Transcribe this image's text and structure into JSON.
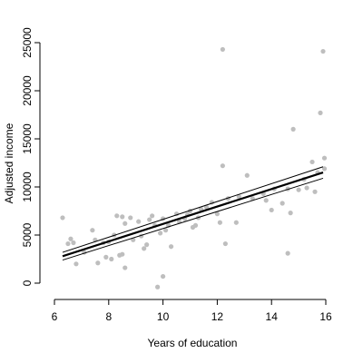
{
  "chart_data": {
    "type": "scatter",
    "xlabel": "Years of education",
    "ylabel": "Adjusted income",
    "xlim": [
      6,
      16
    ],
    "ylim": [
      -500,
      25000
    ],
    "xticks": [
      6,
      8,
      10,
      12,
      14,
      16
    ],
    "yticks": [
      0,
      5000,
      10000,
      15000,
      20000,
      25000
    ],
    "grid": false,
    "point_color": "#bebebe",
    "line_color": "#000000",
    "points": [
      {
        "x": 6.3,
        "y": 6800
      },
      {
        "x": 6.5,
        "y": 4100
      },
      {
        "x": 6.6,
        "y": 4600
      },
      {
        "x": 6.7,
        "y": 4200
      },
      {
        "x": 6.8,
        "y": 2000
      },
      {
        "x": 7.1,
        "y": 3200
      },
      {
        "x": 7.4,
        "y": 5500
      },
      {
        "x": 7.5,
        "y": 4500
      },
      {
        "x": 7.6,
        "y": 2100
      },
      {
        "x": 7.8,
        "y": 4200
      },
      {
        "x": 7.9,
        "y": 2700
      },
      {
        "x": 8.0,
        "y": 4300
      },
      {
        "x": 8.1,
        "y": 2500
      },
      {
        "x": 8.2,
        "y": 5000
      },
      {
        "x": 8.3,
        "y": 7000
      },
      {
        "x": 8.4,
        "y": 2900
      },
      {
        "x": 8.5,
        "y": 6900
      },
      {
        "x": 8.5,
        "y": 3000
      },
      {
        "x": 8.6,
        "y": 6200
      },
      {
        "x": 8.6,
        "y": 1600
      },
      {
        "x": 8.8,
        "y": 6800
      },
      {
        "x": 8.9,
        "y": 4500
      },
      {
        "x": 9.1,
        "y": 6400
      },
      {
        "x": 9.2,
        "y": 4900
      },
      {
        "x": 9.3,
        "y": 3600
      },
      {
        "x": 9.4,
        "y": 4000
      },
      {
        "x": 9.5,
        "y": 6600
      },
      {
        "x": 9.6,
        "y": 7000
      },
      {
        "x": 9.7,
        "y": 6000
      },
      {
        "x": 9.8,
        "y": -400
      },
      {
        "x": 9.9,
        "y": 5200
      },
      {
        "x": 10.0,
        "y": 6700
      },
      {
        "x": 10.0,
        "y": 700
      },
      {
        "x": 10.1,
        "y": 5500
      },
      {
        "x": 10.2,
        "y": 6000
      },
      {
        "x": 10.3,
        "y": 3800
      },
      {
        "x": 10.5,
        "y": 7200
      },
      {
        "x": 10.6,
        "y": 6400
      },
      {
        "x": 10.8,
        "y": 6700
      },
      {
        "x": 10.9,
        "y": 7100
      },
      {
        "x": 11.0,
        "y": 7500
      },
      {
        "x": 11.1,
        "y": 5800
      },
      {
        "x": 11.2,
        "y": 6000
      },
      {
        "x": 11.3,
        "y": 6800
      },
      {
        "x": 11.4,
        "y": 7700
      },
      {
        "x": 11.6,
        "y": 7900
      },
      {
        "x": 11.8,
        "y": 8400
      },
      {
        "x": 12.0,
        "y": 7200
      },
      {
        "x": 12.1,
        "y": 6300
      },
      {
        "x": 12.2,
        "y": 24300
      },
      {
        "x": 12.2,
        "y": 12200
      },
      {
        "x": 12.3,
        "y": 4100
      },
      {
        "x": 12.4,
        "y": 8800
      },
      {
        "x": 12.7,
        "y": 6300
      },
      {
        "x": 12.8,
        "y": 9000
      },
      {
        "x": 13.1,
        "y": 11200
      },
      {
        "x": 13.3,
        "y": 8800
      },
      {
        "x": 13.7,
        "y": 9300
      },
      {
        "x": 13.8,
        "y": 8600
      },
      {
        "x": 14.0,
        "y": 7600
      },
      {
        "x": 14.1,
        "y": 9800
      },
      {
        "x": 14.4,
        "y": 8300
      },
      {
        "x": 14.6,
        "y": 9800
      },
      {
        "x": 14.6,
        "y": 3100
      },
      {
        "x": 14.7,
        "y": 7300
      },
      {
        "x": 14.8,
        "y": 16000
      },
      {
        "x": 15.0,
        "y": 9700
      },
      {
        "x": 15.2,
        "y": 10800
      },
      {
        "x": 15.3,
        "y": 9900
      },
      {
        "x": 15.5,
        "y": 12600
      },
      {
        "x": 15.6,
        "y": 9500
      },
      {
        "x": 15.7,
        "y": 11500
      },
      {
        "x": 15.8,
        "y": 17700
      },
      {
        "x": 15.9,
        "y": 24100
      },
      {
        "x": 15.95,
        "y": 13000
      },
      {
        "x": 15.95,
        "y": 11900
      }
    ],
    "lines": [
      {
        "role": "fit",
        "x": [
          6.3,
          15.9
        ],
        "y": [
          2800,
          11500
        ]
      },
      {
        "role": "upper-band",
        "x": [
          6.3,
          15.9
        ],
        "y": [
          3200,
          12100
        ]
      },
      {
        "role": "lower-band",
        "x": [
          6.3,
          15.9
        ],
        "y": [
          2400,
          10900
        ]
      }
    ]
  }
}
